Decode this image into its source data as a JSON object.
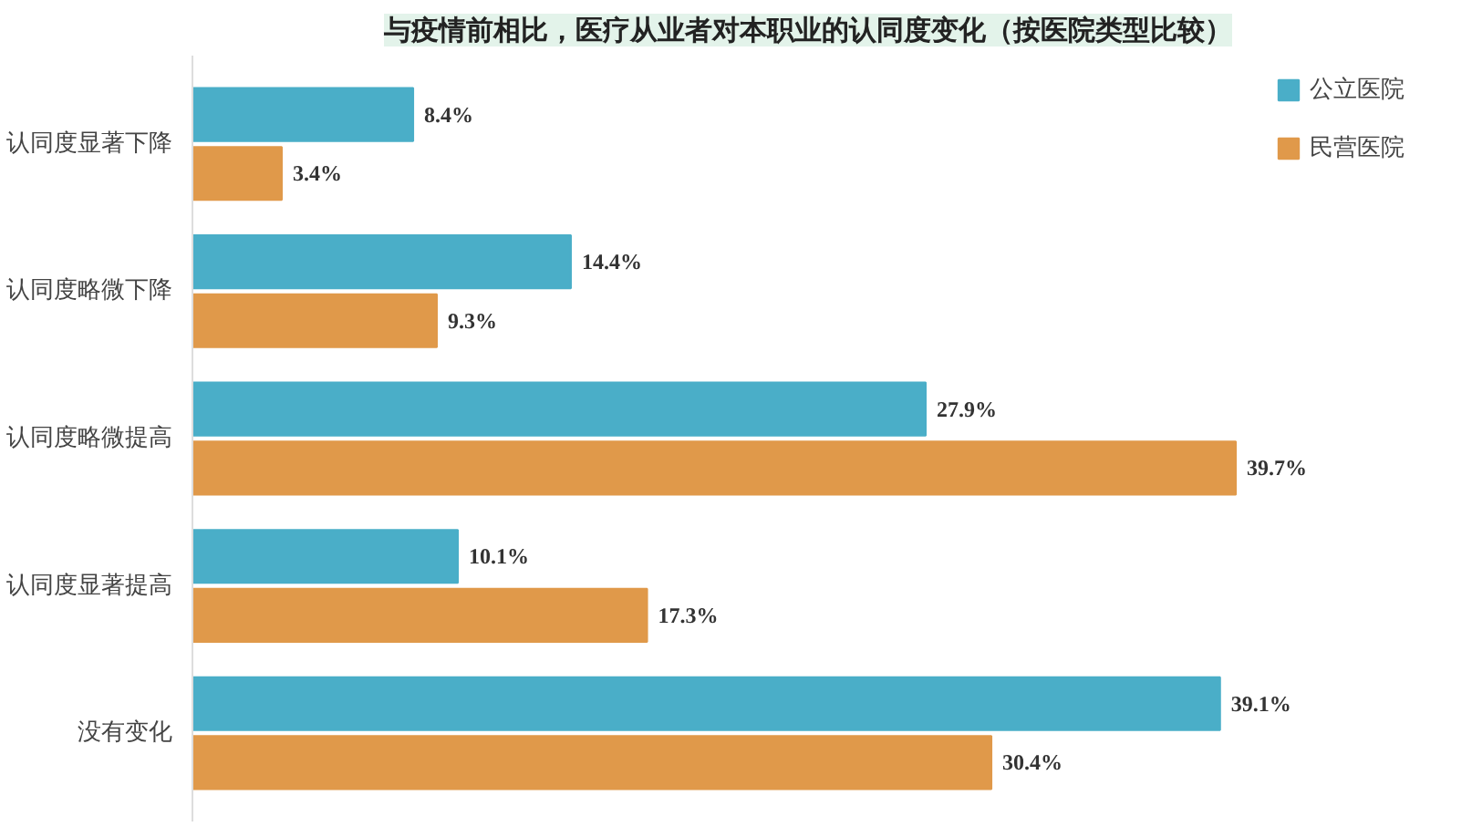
{
  "chart_data": {
    "type": "bar",
    "orientation": "horizontal",
    "title": "与疫情前相比，医疗从业者对本职业的认同度变化（按医院类型比较）",
    "categories": [
      "认同度显著下降",
      "认同度略微下降",
      "认同度略微提高",
      "认同度显著提高",
      "没有变化"
    ],
    "series": [
      {
        "name": "公立医院",
        "color": "#4aaec8",
        "values": [
          8.4,
          14.4,
          27.9,
          10.1,
          39.1
        ],
        "value_labels": [
          "8.4%",
          "14.4%",
          "27.9%",
          "10.1%",
          "39.1%"
        ]
      },
      {
        "name": "民营医院",
        "color": "#e0994a",
        "values": [
          3.4,
          9.3,
          39.7,
          17.3,
          30.4
        ],
        "value_labels": [
          "3.4%",
          "9.3%",
          "39.7%",
          "17.3%",
          "30.4%"
        ]
      }
    ],
    "legend": "top right",
    "grid": false
  }
}
